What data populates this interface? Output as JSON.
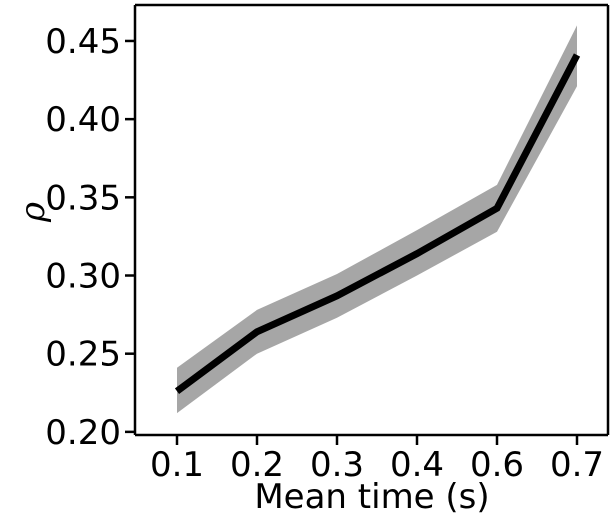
{
  "chart_data": {
    "type": "line",
    "title": "",
    "xlabel": "Mean time (s)",
    "ylabel": "ρ",
    "x": [
      0.1,
      0.2,
      0.3,
      0.4,
      0.6,
      0.7
    ],
    "series": [
      {
        "values": [
          0.226,
          0.264,
          0.287,
          0.314,
          0.343,
          0.441
        ],
        "lower": [
          0.212,
          0.25,
          0.273,
          0.3,
          0.328,
          0.421
        ],
        "upper": [
          0.241,
          0.278,
          0.301,
          0.329,
          0.358,
          0.46
        ],
        "color": "#000000",
        "band_color": "#a6a6a6"
      }
    ],
    "x_tick_labels": [
      "0.1",
      "0.2",
      "0.3",
      "0.4",
      "0.6",
      "0.7"
    ],
    "y_ticks": [
      0.2,
      0.25,
      0.3,
      0.35,
      0.4,
      0.45
    ],
    "y_tick_labels": [
      "0.20",
      "0.25",
      "0.30",
      "0.35",
      "0.40",
      "0.45"
    ],
    "ylim": [
      0.198,
      0.473
    ],
    "grid": false,
    "legend": "none"
  }
}
